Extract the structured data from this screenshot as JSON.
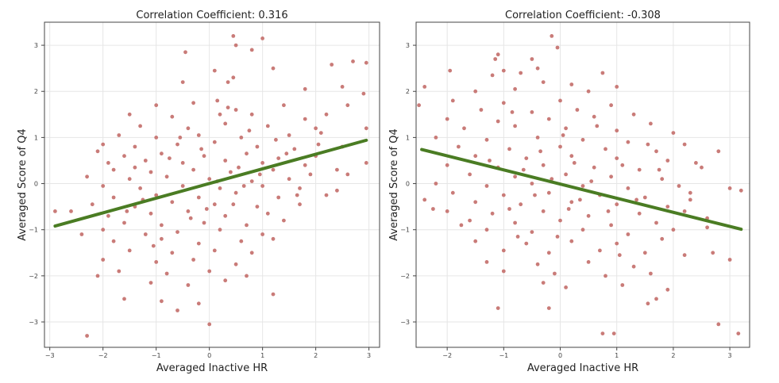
{
  "colors": {
    "point": "#c97b78",
    "fit": "#4a7c23",
    "grid": "#e6e6e6",
    "frame": "#444444"
  },
  "chart_data": [
    {
      "type": "scatter",
      "title": "Correlation Coefficient: 0.316",
      "xlabel": "Averaged Inactive HR",
      "ylabel": "Averaged Score of Q4",
      "xlim": [
        -3.1,
        3.2
      ],
      "ylim": [
        -3.55,
        3.5
      ],
      "xticks": [
        -3,
        -2,
        -1,
        0,
        1,
        2,
        3
      ],
      "yticks": [
        3,
        2,
        1,
        0,
        -1,
        -2,
        -3
      ],
      "fit_line": {
        "x": [
          -2.9,
          2.95
        ],
        "y": [
          -0.92,
          0.94
        ]
      },
      "points": [
        [
          0.45,
          3.2
        ],
        [
          1.0,
          3.15
        ],
        [
          0.5,
          3.0
        ],
        [
          0.8,
          2.9
        ],
        [
          2.7,
          2.65
        ],
        [
          2.95,
          2.62
        ],
        [
          2.3,
          2.58
        ],
        [
          1.2,
          2.5
        ],
        [
          0.45,
          2.3
        ],
        [
          0.1,
          2.45
        ],
        [
          -0.45,
          2.85
        ],
        [
          -0.5,
          2.2
        ],
        [
          0.35,
          2.2
        ],
        [
          1.8,
          2.05
        ],
        [
          2.5,
          2.1
        ],
        [
          2.9,
          1.95
        ],
        [
          -1.0,
          1.7
        ],
        [
          -0.3,
          1.75
        ],
        [
          0.15,
          1.8
        ],
        [
          0.5,
          1.6
        ],
        [
          1.4,
          1.7
        ],
        [
          2.6,
          1.7
        ],
        [
          -1.5,
          1.5
        ],
        [
          -0.7,
          1.45
        ],
        [
          0.2,
          1.5
        ],
        [
          0.8,
          1.5
        ],
        [
          1.8,
          1.4
        ],
        [
          2.2,
          1.5
        ],
        [
          -1.3,
          1.25
        ],
        [
          -0.4,
          1.2
        ],
        [
          0.3,
          1.3
        ],
        [
          1.1,
          1.25
        ],
        [
          2.0,
          1.2
        ],
        [
          2.95,
          1.2
        ],
        [
          -1.7,
          1.05
        ],
        [
          -1.0,
          1.0
        ],
        [
          -0.2,
          1.05
        ],
        [
          0.6,
          1.0
        ],
        [
          1.5,
          1.05
        ],
        [
          2.1,
          1.1
        ],
        [
          -2.0,
          0.85
        ],
        [
          -1.4,
          0.8
        ],
        [
          -0.6,
          0.85
        ],
        [
          0.1,
          0.9
        ],
        [
          0.9,
          0.8
        ],
        [
          1.6,
          0.75
        ],
        [
          2.5,
          0.8
        ],
        [
          -2.1,
          0.7
        ],
        [
          -1.6,
          0.6
        ],
        [
          -0.9,
          0.65
        ],
        [
          -0.1,
          0.6
        ],
        [
          0.7,
          0.65
        ],
        [
          1.3,
          0.55
        ],
        [
          2.0,
          0.6
        ],
        [
          -1.9,
          0.45
        ],
        [
          -1.2,
          0.5
        ],
        [
          -0.5,
          0.45
        ],
        [
          0.3,
          0.5
        ],
        [
          1.0,
          0.45
        ],
        [
          1.8,
          0.4
        ],
        [
          2.4,
          0.3
        ],
        [
          2.95,
          0.45
        ],
        [
          -1.8,
          0.3
        ],
        [
          -1.1,
          0.25
        ],
        [
          -0.3,
          0.3
        ],
        [
          0.4,
          0.25
        ],
        [
          1.2,
          0.3
        ],
        [
          1.9,
          0.2
        ],
        [
          -2.3,
          0.15
        ],
        [
          -1.5,
          0.1
        ],
        [
          -0.8,
          0.15
        ],
        [
          0.0,
          0.1
        ],
        [
          0.8,
          0.05
        ],
        [
          1.5,
          0.1
        ],
        [
          2.6,
          0.2
        ],
        [
          -2.0,
          -0.05
        ],
        [
          -1.3,
          -0.1
        ],
        [
          -0.5,
          -0.05
        ],
        [
          0.2,
          -0.1
        ],
        [
          1.0,
          -0.05
        ],
        [
          1.7,
          -0.1
        ],
        [
          2.4,
          -0.15
        ],
        [
          -1.8,
          -0.3
        ],
        [
          -1.0,
          -0.25
        ],
        [
          -0.2,
          -0.3
        ],
        [
          0.5,
          -0.2
        ],
        [
          1.3,
          -0.3
        ],
        [
          2.2,
          -0.25
        ],
        [
          -2.2,
          -0.45
        ],
        [
          -1.4,
          -0.5
        ],
        [
          -0.7,
          -0.4
        ],
        [
          0.1,
          -0.45
        ],
        [
          0.9,
          -0.5
        ],
        [
          1.7,
          -0.45
        ],
        [
          -2.6,
          -0.6
        ],
        [
          -1.9,
          -0.7
        ],
        [
          -1.1,
          -0.65
        ],
        [
          -0.4,
          -0.6
        ],
        [
          0.3,
          -0.7
        ],
        [
          1.1,
          -0.65
        ],
        [
          -2.9,
          -0.6
        ],
        [
          -1.6,
          -0.85
        ],
        [
          -0.9,
          -0.9
        ],
        [
          -0.1,
          -0.85
        ],
        [
          0.7,
          -0.9
        ],
        [
          1.4,
          -0.8
        ],
        [
          -2.0,
          -1.0
        ],
        [
          -1.2,
          -1.1
        ],
        [
          -0.6,
          -1.05
        ],
        [
          0.2,
          -1.0
        ],
        [
          1.0,
          -1.1
        ],
        [
          -2.4,
          -1.1
        ],
        [
          -1.8,
          -1.25
        ],
        [
          -0.9,
          -1.2
        ],
        [
          -0.2,
          -1.3
        ],
        [
          0.6,
          -1.25
        ],
        [
          1.2,
          -1.2
        ],
        [
          -1.5,
          -1.45
        ],
        [
          -0.7,
          -1.5
        ],
        [
          0.1,
          -1.45
        ],
        [
          0.8,
          -1.5
        ],
        [
          -2.0,
          -1.65
        ],
        [
          -1.0,
          -1.7
        ],
        [
          -0.3,
          -1.65
        ],
        [
          0.5,
          -1.75
        ],
        [
          -1.7,
          -1.9
        ],
        [
          -0.8,
          -1.95
        ],
        [
          0.0,
          -1.9
        ],
        [
          0.7,
          -2.0
        ],
        [
          -2.1,
          -2.0
        ],
        [
          -1.1,
          -2.15
        ],
        [
          -0.4,
          -2.2
        ],
        [
          0.3,
          -2.1
        ],
        [
          1.2,
          -2.4
        ],
        [
          -1.6,
          -2.5
        ],
        [
          -0.9,
          -2.55
        ],
        [
          -0.2,
          -2.6
        ],
        [
          -0.6,
          -2.75
        ],
        [
          0.0,
          -3.05
        ],
        [
          -2.3,
          -3.3
        ],
        [
          -1.4,
          0.35
        ],
        [
          -0.15,
          0.75
        ],
        [
          0.55,
          0.35
        ],
        [
          1.45,
          0.65
        ],
        [
          -0.35,
          -0.75
        ],
        [
          0.45,
          -0.45
        ],
        [
          -1.25,
          -0.35
        ],
        [
          0.15,
          0.05
        ],
        [
          0.75,
          1.15
        ],
        [
          -0.75,
          0.55
        ],
        [
          1.65,
          -0.25
        ],
        [
          -1.55,
          -0.6
        ],
        [
          0.95,
          0.2
        ],
        [
          -0.05,
          -0.55
        ],
        [
          0.35,
          1.65
        ],
        [
          -0.55,
          1.0
        ],
        [
          1.25,
          0.95
        ],
        [
          -1.05,
          -1.35
        ],
        [
          0.65,
          -0.05
        ],
        [
          2.05,
          0.85
        ]
      ]
    },
    {
      "type": "scatter",
      "title": "Correlation Coefficient: -0.308",
      "xlabel": "Averaged Inactive HR",
      "ylabel": "Averaged Score of Q4",
      "xlim": [
        -2.55,
        3.35
      ],
      "ylim": [
        -3.55,
        3.5
      ],
      "xticks": [
        -2,
        -1,
        0,
        1,
        2,
        3
      ],
      "yticks": [
        3,
        2,
        1,
        0,
        -1,
        -2,
        -3
      ],
      "fit_line": {
        "x": [
          -2.45,
          3.2
        ],
        "y": [
          0.74,
          -0.99
        ]
      },
      "points": [
        [
          -0.15,
          3.2
        ],
        [
          -0.05,
          2.95
        ],
        [
          -1.1,
          2.8
        ],
        [
          -1.15,
          2.7
        ],
        [
          -0.4,
          2.5
        ],
        [
          -1.0,
          2.45
        ],
        [
          -1.2,
          2.35
        ],
        [
          -0.7,
          2.4
        ],
        [
          0.75,
          2.4
        ],
        [
          -1.95,
          2.45
        ],
        [
          -0.3,
          2.2
        ],
        [
          0.2,
          2.15
        ],
        [
          -2.4,
          2.1
        ],
        [
          -1.5,
          2.0
        ],
        [
          -0.8,
          2.05
        ],
        [
          0.5,
          2.0
        ],
        [
          1.0,
          2.1
        ],
        [
          -1.9,
          1.8
        ],
        [
          -1.0,
          1.75
        ],
        [
          0.0,
          1.8
        ],
        [
          0.9,
          1.7
        ],
        [
          -2.5,
          1.7
        ],
        [
          -1.4,
          1.6
        ],
        [
          -0.5,
          1.55
        ],
        [
          0.3,
          1.6
        ],
        [
          1.3,
          1.5
        ],
        [
          -2.0,
          1.4
        ],
        [
          -1.1,
          1.35
        ],
        [
          -0.2,
          1.4
        ],
        [
          0.6,
          1.45
        ],
        [
          1.6,
          1.3
        ],
        [
          -1.7,
          1.2
        ],
        [
          -0.8,
          1.25
        ],
        [
          0.1,
          1.2
        ],
        [
          1.0,
          1.15
        ],
        [
          2.0,
          1.1
        ],
        [
          -2.2,
          1.0
        ],
        [
          -1.3,
          0.95
        ],
        [
          -0.4,
          1.0
        ],
        [
          0.4,
          0.95
        ],
        [
          1.2,
          0.9
        ],
        [
          2.2,
          0.85
        ],
        [
          -1.8,
          0.8
        ],
        [
          -0.9,
          0.75
        ],
        [
          0.0,
          0.8
        ],
        [
          0.8,
          0.75
        ],
        [
          1.7,
          0.7
        ],
        [
          2.8,
          0.7
        ],
        [
          -1.5,
          0.6
        ],
        [
          -0.6,
          0.55
        ],
        [
          0.2,
          0.6
        ],
        [
          1.0,
          0.55
        ],
        [
          1.9,
          0.5
        ],
        [
          2.4,
          0.45
        ],
        [
          -2.0,
          0.4
        ],
        [
          -1.1,
          0.35
        ],
        [
          -0.3,
          0.4
        ],
        [
          0.6,
          0.35
        ],
        [
          1.4,
          0.3
        ],
        [
          2.5,
          0.35
        ],
        [
          -1.6,
          0.2
        ],
        [
          -0.8,
          0.15
        ],
        [
          0.1,
          0.2
        ],
        [
          0.9,
          0.15
        ],
        [
          1.8,
          0.1
        ],
        [
          -2.2,
          0.0
        ],
        [
          -1.3,
          -0.05
        ],
        [
          -0.5,
          0.0
        ],
        [
          0.4,
          -0.05
        ],
        [
          1.2,
          -0.1
        ],
        [
          2.1,
          -0.05
        ],
        [
          3.0,
          -0.1
        ],
        [
          -1.9,
          -0.2
        ],
        [
          -1.0,
          -0.25
        ],
        [
          -0.2,
          -0.2
        ],
        [
          0.7,
          -0.25
        ],
        [
          1.5,
          -0.3
        ],
        [
          2.3,
          -0.2
        ],
        [
          -2.4,
          -0.35
        ],
        [
          -1.5,
          -0.4
        ],
        [
          -0.7,
          -0.45
        ],
        [
          0.2,
          -0.4
        ],
        [
          1.0,
          -0.45
        ],
        [
          1.9,
          -0.5
        ],
        [
          3.2,
          -0.15
        ],
        [
          -2.0,
          -0.6
        ],
        [
          -1.2,
          -0.65
        ],
        [
          -0.3,
          -0.6
        ],
        [
          0.5,
          -0.7
        ],
        [
          1.4,
          -0.65
        ],
        [
          2.2,
          -0.6
        ],
        [
          -1.6,
          -0.8
        ],
        [
          -0.8,
          -0.85
        ],
        [
          0.0,
          -0.8
        ],
        [
          0.9,
          -0.9
        ],
        [
          1.7,
          -0.85
        ],
        [
          2.6,
          -0.75
        ],
        [
          -1.3,
          -1.0
        ],
        [
          -0.5,
          -1.05
        ],
        [
          0.4,
          -1.0
        ],
        [
          1.2,
          -1.1
        ],
        [
          2.0,
          -1.0
        ],
        [
          -1.5,
          -1.25
        ],
        [
          -0.6,
          -1.3
        ],
        [
          0.2,
          -1.25
        ],
        [
          1.0,
          -1.3
        ],
        [
          1.8,
          -1.2
        ],
        [
          -1.0,
          -1.45
        ],
        [
          -0.2,
          -1.5
        ],
        [
          0.7,
          -1.45
        ],
        [
          1.5,
          -1.5
        ],
        [
          2.7,
          -1.5
        ],
        [
          -1.3,
          -1.7
        ],
        [
          -0.4,
          -1.75
        ],
        [
          0.5,
          -1.7
        ],
        [
          1.3,
          -1.8
        ],
        [
          2.2,
          -1.55
        ],
        [
          -1.0,
          -1.9
        ],
        [
          -0.1,
          -1.95
        ],
        [
          0.8,
          -2.0
        ],
        [
          1.6,
          -1.95
        ],
        [
          3.0,
          -1.65
        ],
        [
          -0.3,
          -2.15
        ],
        [
          0.1,
          -2.25
        ],
        [
          1.1,
          -2.2
        ],
        [
          1.9,
          -2.3
        ],
        [
          -1.1,
          -2.7
        ],
        [
          -0.2,
          -2.7
        ],
        [
          1.7,
          -2.5
        ],
        [
          1.55,
          -2.6
        ],
        [
          2.8,
          -3.05
        ],
        [
          0.75,
          -3.25
        ],
        [
          0.95,
          -3.25
        ],
        [
          3.15,
          -3.25
        ],
        [
          -0.5,
          2.7
        ],
        [
          -0.65,
          0.3
        ],
        [
          0.15,
          -0.55
        ],
        [
          -0.35,
          0.7
        ],
        [
          0.55,
          0.05
        ],
        [
          -0.9,
          -0.55
        ],
        [
          1.1,
          0.4
        ],
        [
          -0.15,
          0.1
        ],
        [
          0.35,
          -0.35
        ],
        [
          -1.25,
          0.5
        ],
        [
          0.85,
          -0.6
        ],
        [
          1.35,
          -0.35
        ],
        [
          -0.75,
          -1.15
        ],
        [
          0.05,
          1.05
        ],
        [
          1.55,
          0.85
        ],
        [
          -1.75,
          -0.9
        ],
        [
          2.3,
          -0.35
        ],
        [
          0.65,
          1.25
        ],
        [
          -0.45,
          -0.25
        ],
        [
          1.05,
          -1.55
        ],
        [
          -2.25,
          -0.55
        ],
        [
          0.25,
          0.45
        ],
        [
          -0.85,
          1.55
        ],
        [
          1.75,
          0.3
        ],
        [
          -0.05,
          -1.15
        ],
        [
          2.6,
          -0.95
        ]
      ]
    }
  ]
}
